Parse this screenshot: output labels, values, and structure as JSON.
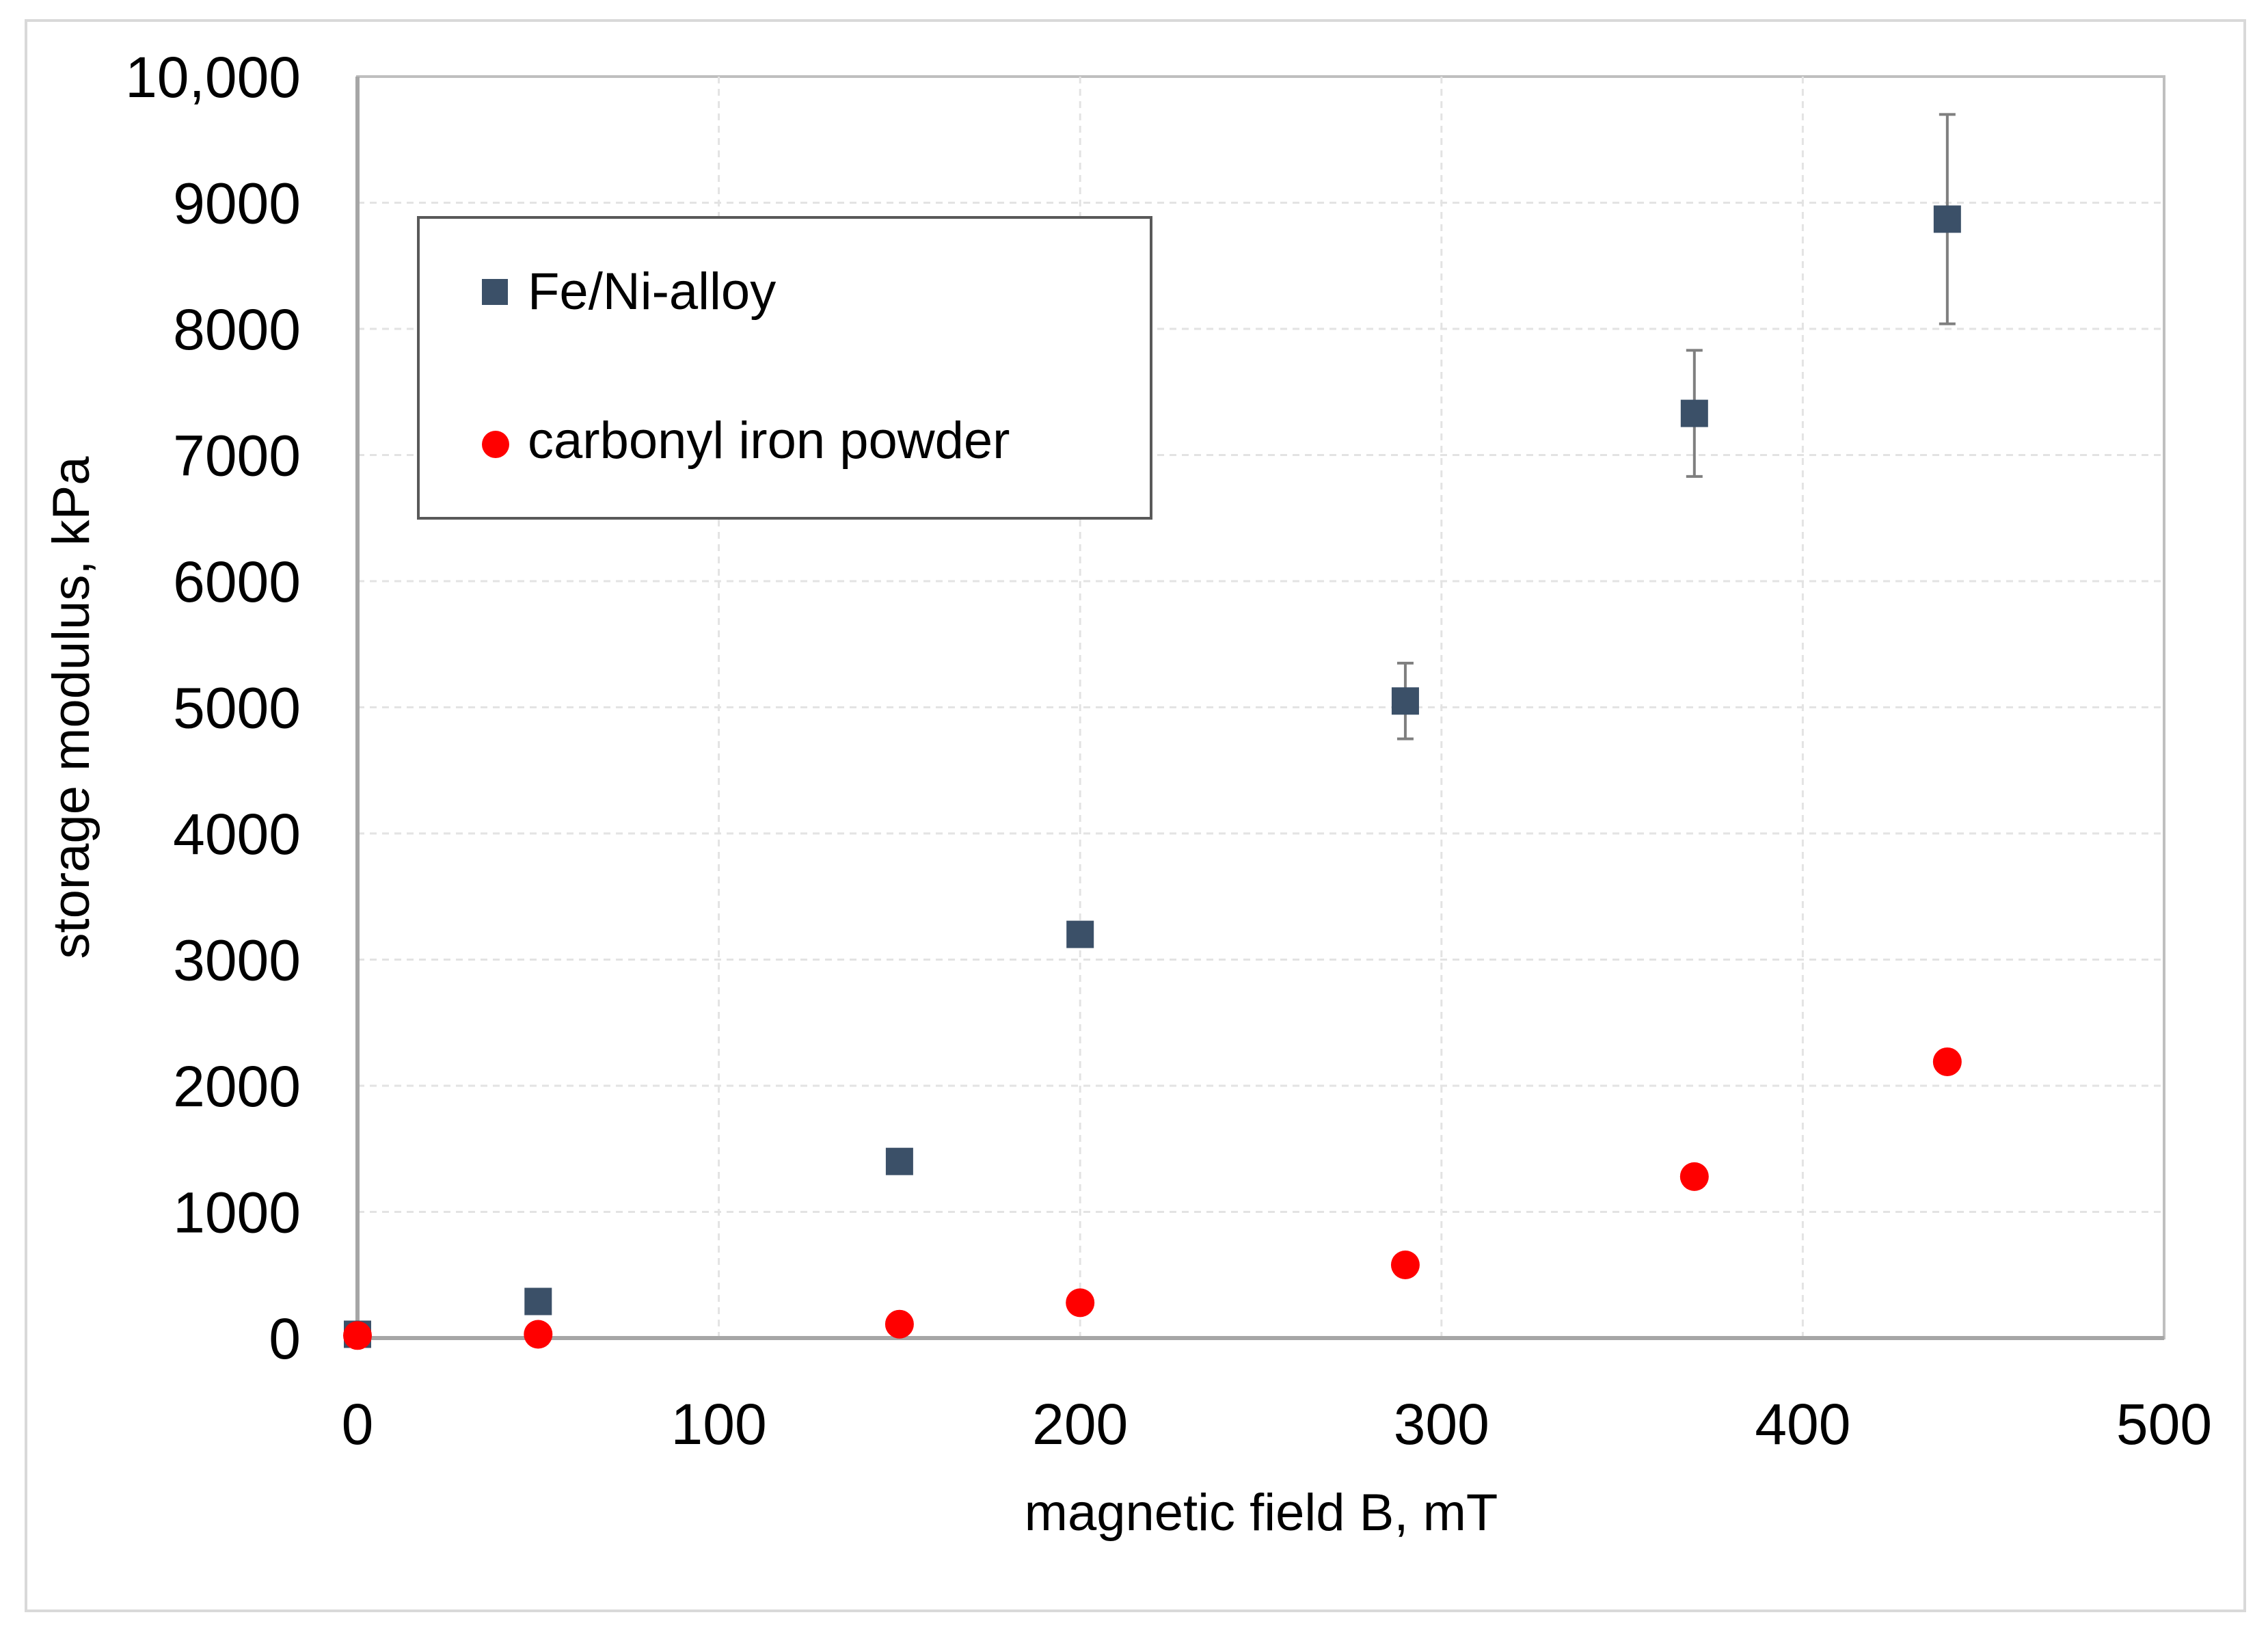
{
  "chart_data": {
    "type": "scatter",
    "title": "",
    "xlabel": "magnetic field B, mT",
    "ylabel": "storage modulus, kPa",
    "xlim": [
      0,
      500
    ],
    "ylim": [
      0,
      10000
    ],
    "x_ticks": [
      0,
      100,
      200,
      300,
      400,
      500
    ],
    "y_ticks": [
      0,
      1000,
      2000,
      3000,
      4000,
      5000,
      6000,
      7000,
      8000,
      9000,
      10000
    ],
    "x_tick_labels": [
      "0",
      "100",
      "200",
      "300",
      "400",
      "500"
    ],
    "y_tick_labels": [
      "0",
      "1000",
      "2000",
      "3000",
      "4000",
      "5000",
      "6000",
      "7000",
      "8000",
      "9000",
      "10,000"
    ],
    "grid": true,
    "legend_position": "top-left",
    "series": [
      {
        "name": "Fe/Ni-alloy",
        "marker": "square",
        "color": "#3b5068",
        "points": [
          {
            "x": 0,
            "y": 30,
            "err": 0
          },
          {
            "x": 50,
            "y": 290,
            "err": 0
          },
          {
            "x": 150,
            "y": 1400,
            "err": 0
          },
          {
            "x": 200,
            "y": 3200,
            "err": 0
          },
          {
            "x": 290,
            "y": 5050,
            "err": 300
          },
          {
            "x": 370,
            "y": 7330,
            "err": 500
          },
          {
            "x": 440,
            "y": 8870,
            "err": 830
          }
        ]
      },
      {
        "name": "carbonyl iron powder",
        "marker": "circle",
        "color": "#ff0000",
        "points": [
          {
            "x": 0,
            "y": 20,
            "err": 0
          },
          {
            "x": 50,
            "y": 30,
            "err": 0
          },
          {
            "x": 150,
            "y": 110,
            "err": 0
          },
          {
            "x": 200,
            "y": 280,
            "err": 0
          },
          {
            "x": 290,
            "y": 580,
            "err": 0
          },
          {
            "x": 370,
            "y": 1280,
            "err": 0
          },
          {
            "x": 440,
            "y": 2190,
            "err": 0
          }
        ]
      }
    ]
  }
}
